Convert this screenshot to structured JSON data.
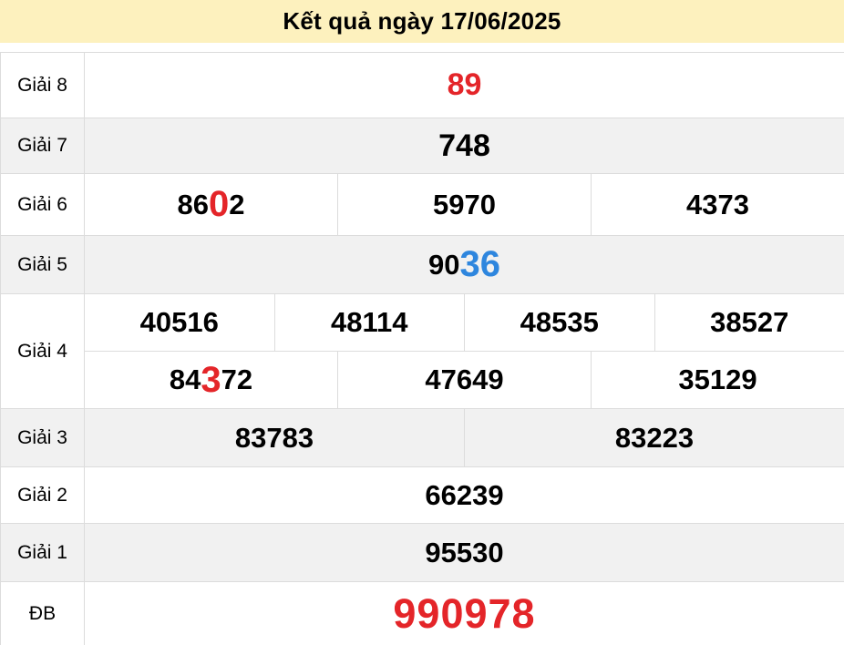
{
  "header": {
    "title": "Kết quả ngày 17/06/2025"
  },
  "colors": {
    "accent_red": "#e42529",
    "accent_blue": "#2e86de",
    "header_bg": "#fdf1be",
    "row_alt_bg": "#f1f1f1",
    "border": "#dcdcdc"
  },
  "results": {
    "rows": [
      {
        "label": "Giải 8",
        "cells": [
          {
            "segments": [
              {
                "text": "89",
                "style": "red"
              }
            ]
          }
        ]
      },
      {
        "label": "Giải 7",
        "cells": [
          {
            "segments": [
              {
                "text": "748"
              }
            ]
          }
        ]
      },
      {
        "label": "Giải 6",
        "cells": [
          {
            "segments": [
              {
                "text": "86"
              },
              {
                "text": "0",
                "style": "red-lg"
              },
              {
                "text": "2"
              }
            ]
          },
          {
            "segments": [
              {
                "text": "5970"
              }
            ]
          },
          {
            "segments": [
              {
                "text": "4373"
              }
            ]
          }
        ]
      },
      {
        "label": "Giải 5",
        "cells": [
          {
            "segments": [
              {
                "text": "90"
              },
              {
                "text": "36",
                "style": "blue-lg"
              }
            ]
          }
        ]
      },
      {
        "label": "Giải 4",
        "lines": [
          [
            {
              "segments": [
                {
                  "text": "40516"
                }
              ]
            },
            {
              "segments": [
                {
                  "text": "48114"
                }
              ]
            },
            {
              "segments": [
                {
                  "text": "48535"
                }
              ]
            },
            {
              "segments": [
                {
                  "text": "38527"
                }
              ]
            }
          ],
          [
            {
              "segments": [
                {
                  "text": "84"
                },
                {
                  "text": "3",
                  "style": "red-lg"
                },
                {
                  "text": "72"
                }
              ]
            },
            {
              "segments": [
                {
                  "text": "47649"
                }
              ]
            },
            {
              "segments": [
                {
                  "text": "35129"
                }
              ]
            }
          ]
        ]
      },
      {
        "label": "Giải 3",
        "cells": [
          {
            "segments": [
              {
                "text": "83783"
              }
            ]
          },
          {
            "segments": [
              {
                "text": "83223"
              }
            ]
          }
        ]
      },
      {
        "label": "Giải 2",
        "cells": [
          {
            "segments": [
              {
                "text": "66239"
              }
            ]
          }
        ]
      },
      {
        "label": "Giải 1",
        "cells": [
          {
            "segments": [
              {
                "text": "95530"
              }
            ]
          }
        ]
      },
      {
        "label": "ĐB",
        "cells": [
          {
            "segments": [
              {
                "text": "990978",
                "style": "red-xl"
              }
            ]
          }
        ]
      }
    ]
  }
}
